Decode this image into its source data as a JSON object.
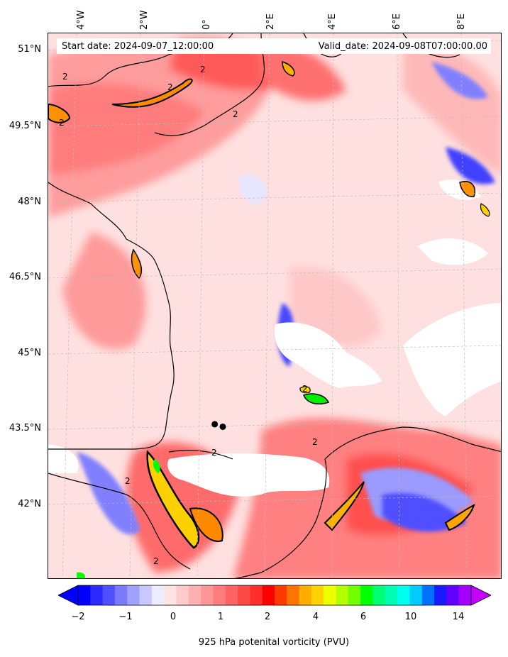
{
  "header": {
    "start_date": "Start date: 2024-09-07_12:00:00",
    "valid_date": "Valid_date: 2024-09-08T07:00:00.00"
  },
  "latitude_labels": [
    "51°N",
    "49.5°N",
    "48°N",
    "46.5°N",
    "45°N",
    "43.5°N",
    "42°N"
  ],
  "longitude_labels": [
    "4°W",
    "2°W",
    "0°",
    "2°E",
    "4°E",
    "6°E",
    "8°E"
  ],
  "colorbar": {
    "label": "925 hPa potenital vorticity (PVU)",
    "ticks": [
      "−2",
      "−1",
      "0",
      "1",
      "2",
      "4",
      "6",
      "10",
      "14"
    ],
    "colors": [
      "#0000ff",
      "#2b2bff",
      "#5050ff",
      "#7a7aff",
      "#a0a0ff",
      "#c8c8ff",
      "#ececff",
      "#ffe4e4",
      "#ffcaca",
      "#ffb0b0",
      "#ff9696",
      "#ff7c7c",
      "#ff6262",
      "#ff4848",
      "#ff2e2e",
      "#ff0000",
      "#ff3a00",
      "#ff7400",
      "#ffae00",
      "#ffd200",
      "#eeff00",
      "#b4ff00",
      "#72ff00",
      "#00ff00",
      "#00ff72",
      "#00ffb4",
      "#00ffee",
      "#00ccff",
      "#0072ff",
      "#1a1aff",
      "#6200ff",
      "#a400ff"
    ],
    "under_color": "#0000ff",
    "over_color": "#c400ff"
  },
  "markers": {
    "points": [
      {
        "lon": 0.3,
        "lat": 43.6
      },
      {
        "lon": 0.55,
        "lat": 43.55
      }
    ]
  }
}
